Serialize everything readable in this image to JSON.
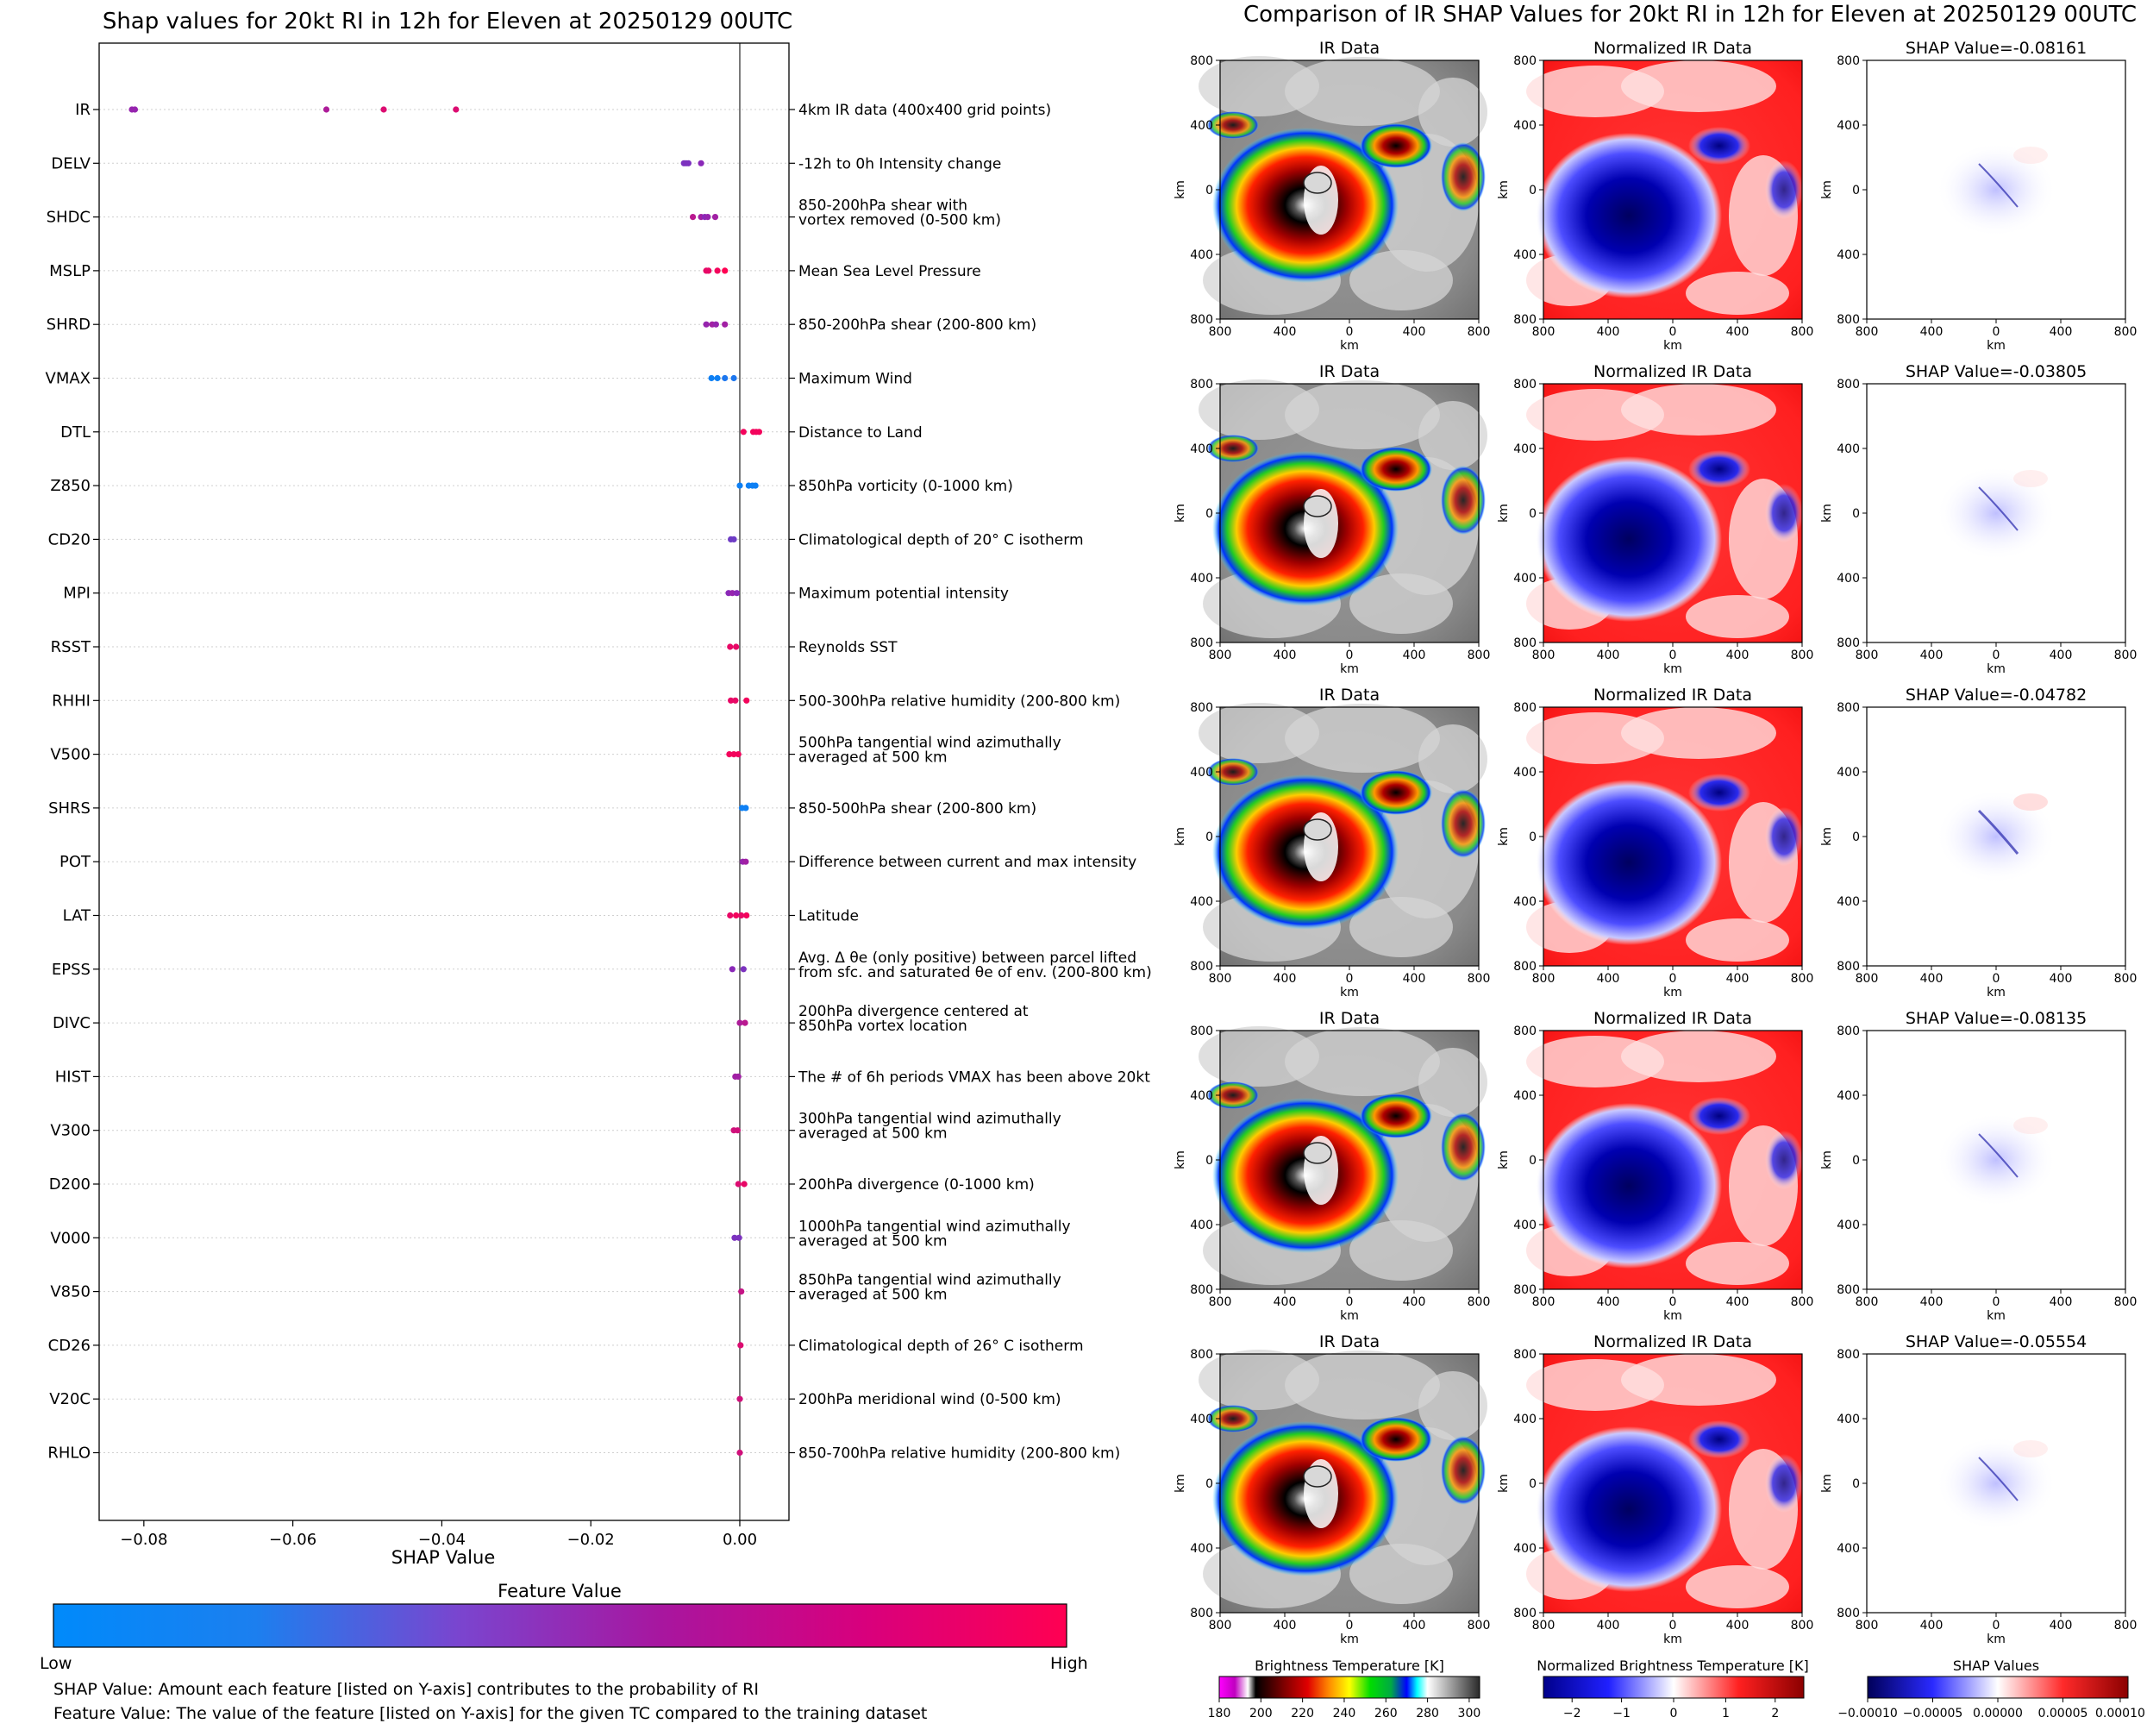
{
  "chart_data": [
    {
      "type": "scatter",
      "title": "Shap values for 20kt RI in 12h for Eleven at 20250129 00UTC",
      "xlabel": "SHAP Value",
      "ylabel": "",
      "xlim": [
        -0.086,
        0.0066
      ],
      "x_ticks": [
        -0.08,
        -0.06,
        -0.04,
        -0.02,
        0.0
      ],
      "x_tick_labels": [
        "−0.08",
        "−0.06",
        "−0.04",
        "−0.02",
        "0.00"
      ],
      "colorbar": {
        "title": "Feature Value",
        "low_label": "Low",
        "high_label": "High",
        "low_color": "#008afb",
        "mid_color": "#8a28b8",
        "high_color": "#ff0052"
      },
      "features": [
        {
          "name": "IR",
          "description": "4km IR data (400x400 grid points)",
          "points": [
            [
              -0.0816,
              0.55
            ],
            [
              -0.0812,
              0.55
            ],
            [
              -0.0555,
              0.65
            ],
            [
              -0.0478,
              0.85
            ],
            [
              -0.0381,
              0.85
            ]
          ]
        },
        {
          "name": "DELV",
          "description": "-12h to 0h Intensity change",
          "points": [
            [
              -0.0075,
              0.45
            ],
            [
              -0.0072,
              0.45
            ],
            [
              -0.0069,
              0.45
            ],
            [
              -0.0052,
              0.5
            ]
          ]
        },
        {
          "name": "SHDC",
          "description": "850-200hPa shear with\nvortex removed (0-500 km)",
          "points": [
            [
              -0.0063,
              0.7
            ],
            [
              -0.0052,
              0.6
            ],
            [
              -0.0047,
              0.5
            ],
            [
              -0.0043,
              0.55
            ],
            [
              -0.0033,
              0.6
            ]
          ]
        },
        {
          "name": "MSLP",
          "description": "Mean Sea Level Pressure",
          "points": [
            [
              -0.0045,
              0.9
            ],
            [
              -0.0042,
              0.9
            ],
            [
              -0.003,
              0.95
            ],
            [
              -0.002,
              1.0
            ]
          ]
        },
        {
          "name": "SHRD",
          "description": "850-200hPa shear (200-800 km)",
          "points": [
            [
              -0.0045,
              0.55
            ],
            [
              -0.0037,
              0.6
            ],
            [
              -0.0032,
              0.55
            ],
            [
              -0.002,
              0.6
            ]
          ]
        },
        {
          "name": "VMAX",
          "description": "Maximum Wind",
          "points": [
            [
              -0.0038,
              0.05
            ],
            [
              -0.003,
              0.05
            ],
            [
              -0.002,
              0.1
            ],
            [
              -0.0008,
              0.1
            ]
          ]
        },
        {
          "name": "DTL",
          "description": "Distance to Land",
          "points": [
            [
              0.0005,
              0.95
            ],
            [
              0.0018,
              0.95
            ],
            [
              0.0022,
              0.95
            ],
            [
              0.0026,
              0.95
            ]
          ]
        },
        {
          "name": "Z850",
          "description": "850hPa vorticity (0-1000 km)",
          "points": [
            [
              0.0,
              0.05
            ],
            [
              0.0012,
              0.05
            ],
            [
              0.0017,
              0.05
            ],
            [
              0.0021,
              0.05
            ]
          ]
        },
        {
          "name": "CD20",
          "description": "Climatological depth of 20° C isotherm",
          "points": [
            [
              -0.0012,
              0.4
            ],
            [
              -0.0008,
              0.4
            ]
          ]
        },
        {
          "name": "MPI",
          "description": "Maximum potential intensity",
          "points": [
            [
              -0.0015,
              0.5
            ],
            [
              -0.001,
              0.55
            ],
            [
              -0.0004,
              0.5
            ]
          ]
        },
        {
          "name": "RSST",
          "description": "Reynolds SST",
          "points": [
            [
              -0.0013,
              0.9
            ],
            [
              -0.0005,
              0.9
            ]
          ]
        },
        {
          "name": "RHHI",
          "description": "500-300hPa relative humidity (200-800 km)",
          "points": [
            [
              -0.0012,
              0.9
            ],
            [
              -0.0006,
              0.9
            ],
            [
              0.0009,
              0.95
            ]
          ]
        },
        {
          "name": "V500",
          "description": "500hPa tangential wind azimuthally\naveraged at 500 km",
          "points": [
            [
              -0.0014,
              0.95
            ],
            [
              -0.0008,
              0.95
            ],
            [
              -0.0002,
              0.95
            ]
          ]
        },
        {
          "name": "SHRS",
          "description": "850-500hPa shear (200-800 km)",
          "points": [
            [
              0.0003,
              0.05
            ],
            [
              0.0008,
              0.05
            ]
          ]
        },
        {
          "name": "POT",
          "description": "Difference between current and max intensity",
          "points": [
            [
              0.0004,
              0.55
            ],
            [
              0.0008,
              0.6
            ]
          ]
        },
        {
          "name": "LAT",
          "description": "Latitude",
          "points": [
            [
              -0.0013,
              0.9
            ],
            [
              -0.0005,
              0.95
            ],
            [
              0.0002,
              0.9
            ],
            [
              0.0009,
              0.95
            ]
          ]
        },
        {
          "name": "EPSS",
          "description": "Avg. Δ θe (only positive) between parcel lifted\nfrom sfc. and saturated θe of env. (200-800 km)",
          "points": [
            [
              -0.001,
              0.5
            ],
            [
              0.0005,
              0.45
            ]
          ]
        },
        {
          "name": "DIVC",
          "description": "200hPa divergence centered at\n850hPa vortex location",
          "points": [
            [
              0.0,
              0.65
            ],
            [
              0.0007,
              0.7
            ]
          ]
        },
        {
          "name": "HIST",
          "description": "The # of 6h periods VMAX has been above 20kt",
          "points": [
            [
              -0.0006,
              0.6
            ],
            [
              -0.0002,
              0.6
            ]
          ]
        },
        {
          "name": "V300",
          "description": "300hPa tangential wind azimuthally\naveraged at 500 km",
          "points": [
            [
              -0.0008,
              0.8
            ],
            [
              -0.0003,
              0.8
            ]
          ]
        },
        {
          "name": "D200",
          "description": "200hPa divergence (0-1000 km)",
          "points": [
            [
              -0.0002,
              0.85
            ],
            [
              0.0006,
              0.9
            ]
          ]
        },
        {
          "name": "V000",
          "description": "1000hPa tangential wind azimuthally\naveraged at 500 km",
          "points": [
            [
              -0.0007,
              0.45
            ],
            [
              -0.0001,
              0.45
            ]
          ]
        },
        {
          "name": "V850",
          "description": "850hPa tangential wind azimuthally\naveraged at 500 km",
          "points": [
            [
              0.0002,
              0.75
            ]
          ]
        },
        {
          "name": "CD26",
          "description": "Climatological depth of 26° C isotherm",
          "points": [
            [
              0.0001,
              0.85
            ]
          ]
        },
        {
          "name": "V20C",
          "description": "200hPa meridional wind (0-500 km)",
          "points": [
            [
              0.0,
              0.8
            ]
          ]
        },
        {
          "name": "RHLO",
          "description": "850-700hPa relative humidity (200-800 km)",
          "points": [
            [
              0.0,
              0.8
            ]
          ]
        }
      ]
    },
    {
      "type": "heatmap",
      "title": "Comparison of IR SHAP Values for 20kt RI in 12h for Eleven at 20250129 00UTC",
      "panel_titles": [
        "IR Data",
        "Normalized IR Data"
      ],
      "shap_titles": [
        "SHAP Value=-0.08161",
        "SHAP Value=-0.03805",
        "SHAP Value=-0.04782",
        "SHAP Value=-0.08135",
        "SHAP Value=-0.05554"
      ],
      "shap_values": [
        -0.08161,
        -0.03805,
        -0.04782,
        -0.08135,
        -0.05554
      ],
      "xlabel": "km",
      "ylabel": "km",
      "tick_labels": [
        "800",
        "400",
        "0",
        "400",
        "800"
      ],
      "colorbars": [
        {
          "title": "Brightness Temperature [K]",
          "ticks": [
            "180",
            "200",
            "220",
            "240",
            "260",
            "280",
            "300"
          ]
        },
        {
          "title": "Normalized Brightness Temperature [K]",
          "ticks": [
            "−2",
            "−1",
            "0",
            "1",
            "2"
          ]
        },
        {
          "title": "SHAP Values",
          "ticks": [
            "−0.00010",
            "−0.00005",
            "0.00000",
            "0.00005",
            "0.00010"
          ]
        }
      ]
    }
  ],
  "notes": [
    "SHAP Value: Amount each feature [listed on Y-axis] contributes to the probability of RI",
    "Feature Value: The value of the feature [listed on Y-axis] for the given TC compared to the training dataset"
  ]
}
